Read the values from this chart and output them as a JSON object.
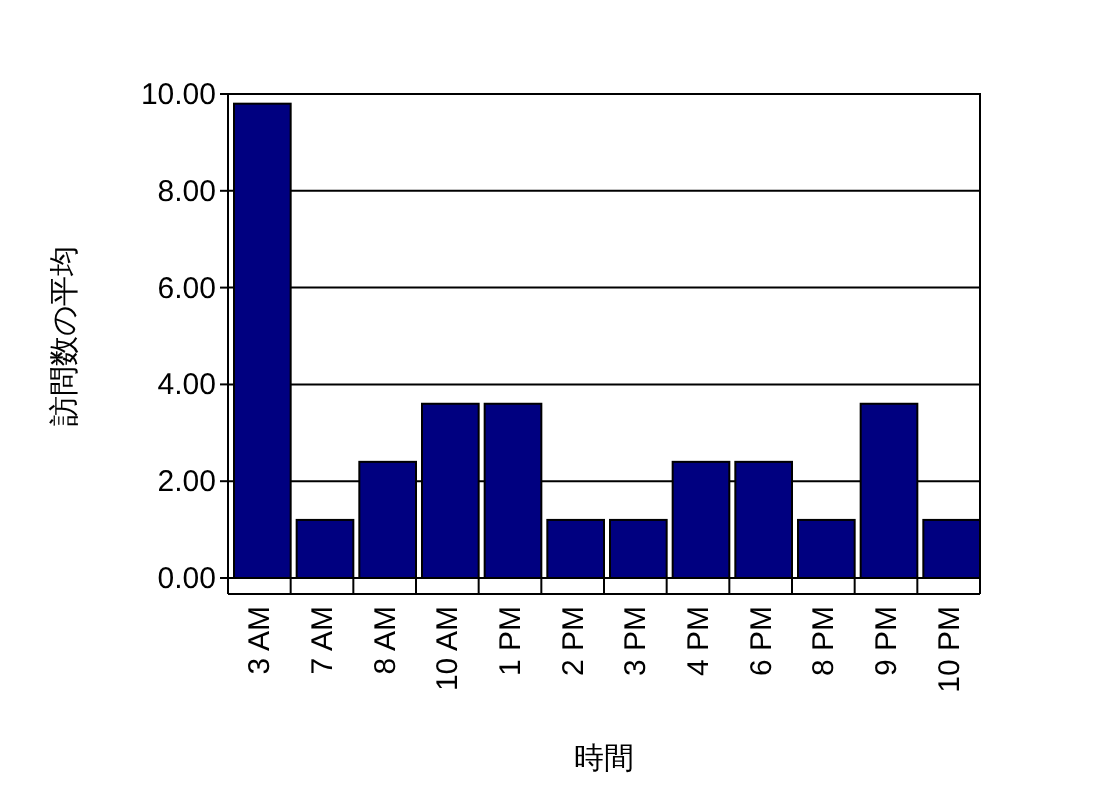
{
  "chart_data": {
    "type": "bar",
    "xlabel": "時間",
    "ylabel": "訪問数の平均",
    "categories": [
      "3 AM",
      "7 AM",
      "8 AM",
      "10 AM",
      "1 PM",
      "2 PM",
      "3 PM",
      "4 PM",
      "6 PM",
      "8 PM",
      "9 PM",
      "10 PM"
    ],
    "values": [
      9.8,
      1.2,
      2.4,
      3.6,
      3.6,
      1.2,
      1.2,
      2.4,
      2.4,
      1.2,
      3.6,
      1.2
    ],
    "color": "#000080",
    "ylim": [
      0,
      10
    ],
    "yticks": [
      {
        "value": 0,
        "label": "0.00"
      },
      {
        "value": 2,
        "label": "2.00"
      },
      {
        "value": 4,
        "label": "4.00"
      },
      {
        "value": 6,
        "label": "6.00"
      },
      {
        "value": 8,
        "label": "8.00"
      },
      {
        "value": 10,
        "label": "10.00"
      }
    ],
    "grid": "y"
  }
}
